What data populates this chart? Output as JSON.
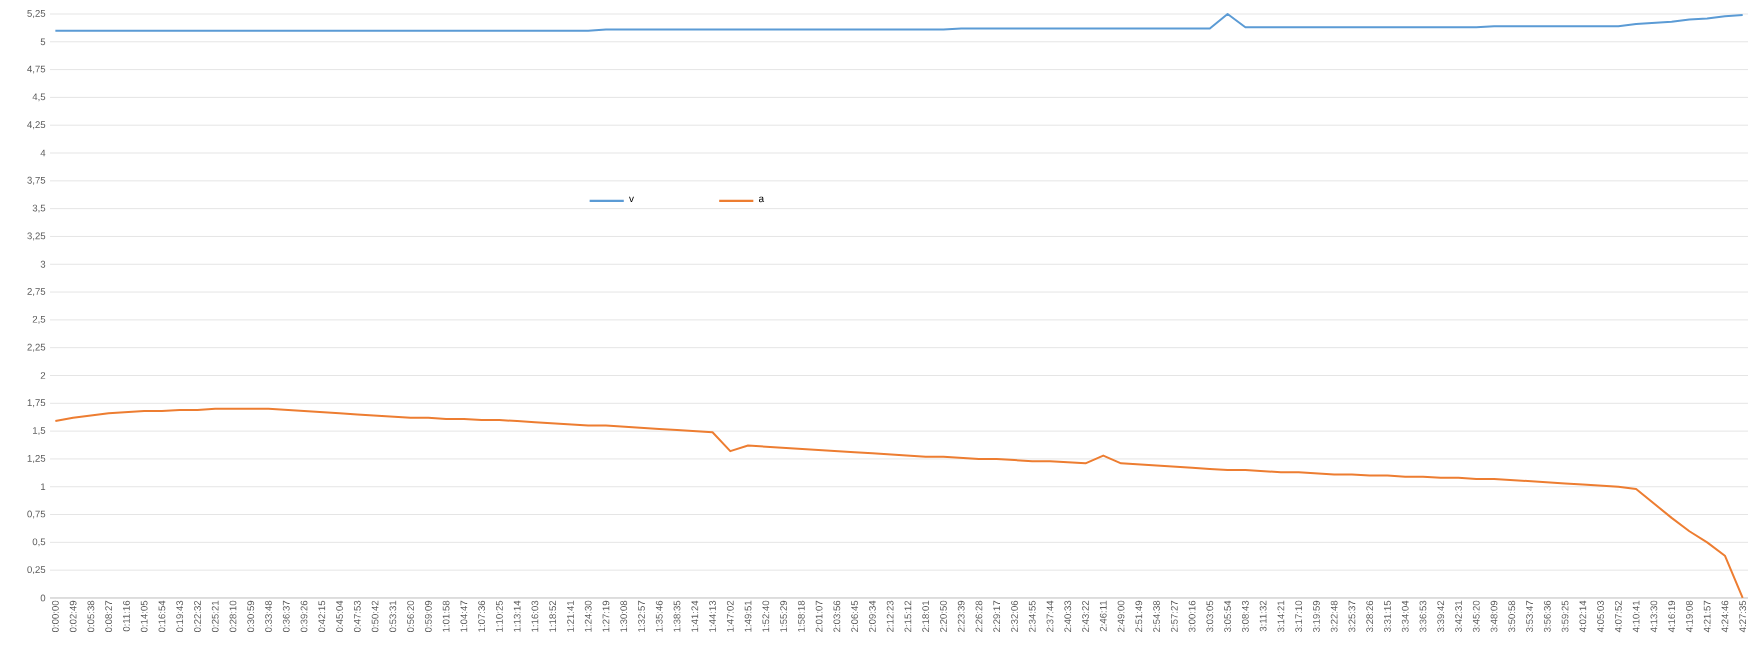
{
  "chart_data": {
    "type": "line",
    "categories": [
      "0:00:00",
      "0:02:49",
      "0:05:38",
      "0:08:27",
      "0:11:16",
      "0:14:05",
      "0:16:54",
      "0:19:43",
      "0:22:32",
      "0:25:21",
      "0:28:10",
      "0:30:59",
      "0:33:48",
      "0:36:37",
      "0:39:26",
      "0:42:15",
      "0:45:04",
      "0:47:53",
      "0:50:42",
      "0:53:31",
      "0:56:20",
      "0:59:09",
      "1:01:58",
      "1:04:47",
      "1:07:36",
      "1:10:25",
      "1:13:14",
      "1:16:03",
      "1:18:52",
      "1:21:41",
      "1:24:30",
      "1:27:19",
      "1:30:08",
      "1:32:57",
      "1:35:46",
      "1:38:35",
      "1:41:24",
      "1:44:13",
      "1:47:02",
      "1:49:51",
      "1:52:40",
      "1:55:29",
      "1:58:18",
      "2:01:07",
      "2:03:56",
      "2:06:45",
      "2:09:34",
      "2:12:23",
      "2:15:12",
      "2:18:01",
      "2:20:50",
      "2:23:39",
      "2:26:28",
      "2:29:17",
      "2:32:06",
      "2:34:55",
      "2:37:44",
      "2:40:33",
      "2:43:22",
      "2:46:11",
      "2:49:00",
      "2:51:49",
      "2:54:38",
      "2:57:27",
      "3:00:16",
      "3:03:05",
      "3:05:54",
      "3:08:43",
      "3:11:32",
      "3:14:21",
      "3:17:10",
      "3:19:59",
      "3:22:48",
      "3:25:37",
      "3:28:26",
      "3:31:15",
      "3:34:04",
      "3:36:53",
      "3:39:42",
      "3:42:31",
      "3:45:20",
      "3:48:09",
      "3:50:58",
      "3:53:47",
      "3:56:36",
      "3:59:25",
      "4:02:14",
      "4:05:03",
      "4:07:52",
      "4:10:41",
      "4:13:30",
      "4:16:19",
      "4:19:08",
      "4:21:57",
      "4:24:46",
      "4:27:35"
    ],
    "series": [
      {
        "name": "v",
        "color": "#5b9bd5",
        "values": [
          5.1,
          5.1,
          5.1,
          5.1,
          5.1,
          5.1,
          5.1,
          5.1,
          5.1,
          5.1,
          5.1,
          5.1,
          5.1,
          5.1,
          5.1,
          5.1,
          5.1,
          5.1,
          5.1,
          5.1,
          5.1,
          5.1,
          5.1,
          5.1,
          5.1,
          5.1,
          5.1,
          5.1,
          5.1,
          5.1,
          5.1,
          5.11,
          5.11,
          5.11,
          5.11,
          5.11,
          5.11,
          5.11,
          5.11,
          5.11,
          5.11,
          5.11,
          5.11,
          5.11,
          5.11,
          5.11,
          5.11,
          5.11,
          5.11,
          5.11,
          5.11,
          5.12,
          5.12,
          5.12,
          5.12,
          5.12,
          5.12,
          5.12,
          5.12,
          5.12,
          5.12,
          5.12,
          5.12,
          5.12,
          5.12,
          5.12,
          5.25,
          5.13,
          5.13,
          5.13,
          5.13,
          5.13,
          5.13,
          5.13,
          5.13,
          5.13,
          5.13,
          5.13,
          5.13,
          5.13,
          5.13,
          5.14,
          5.14,
          5.14,
          5.14,
          5.14,
          5.14,
          5.14,
          5.14,
          5.16,
          5.17,
          5.18,
          5.2,
          5.21,
          5.23,
          5.24
        ]
      },
      {
        "name": "a",
        "color": "#ed7d31",
        "values": [
          1.59,
          1.62,
          1.64,
          1.66,
          1.67,
          1.68,
          1.68,
          1.69,
          1.69,
          1.7,
          1.7,
          1.7,
          1.7,
          1.69,
          1.68,
          1.67,
          1.66,
          1.65,
          1.64,
          1.63,
          1.62,
          1.62,
          1.61,
          1.61,
          1.6,
          1.6,
          1.59,
          1.58,
          1.57,
          1.56,
          1.55,
          1.55,
          1.54,
          1.53,
          1.52,
          1.51,
          1.5,
          1.49,
          1.32,
          1.37,
          1.36,
          1.35,
          1.34,
          1.33,
          1.32,
          1.31,
          1.3,
          1.29,
          1.28,
          1.27,
          1.27,
          1.26,
          1.25,
          1.25,
          1.24,
          1.23,
          1.23,
          1.22,
          1.21,
          1.28,
          1.21,
          1.2,
          1.19,
          1.18,
          1.17,
          1.16,
          1.15,
          1.15,
          1.14,
          1.13,
          1.13,
          1.12,
          1.11,
          1.11,
          1.1,
          1.1,
          1.09,
          1.09,
          1.08,
          1.08,
          1.07,
          1.07,
          1.06,
          1.05,
          1.04,
          1.03,
          1.02,
          1.01,
          1.0,
          0.98,
          0.85,
          0.72,
          0.6,
          0.5,
          0.38,
          0.0
        ]
      }
    ],
    "ylim": [
      0,
      5.25
    ],
    "yticks": [
      0,
      {
        "value": 0.25,
        "label": "0,25"
      },
      {
        "value": 0.5,
        "label": "0,5"
      },
      {
        "value": 0.75,
        "label": "0,75"
      },
      1,
      {
        "value": 1.25,
        "label": "1,25"
      },
      {
        "value": 1.5,
        "label": "1,5"
      },
      {
        "value": 1.75,
        "label": "1,75"
      },
      2,
      {
        "value": 2.25,
        "label": "2,25"
      },
      {
        "value": 2.5,
        "label": "2,5"
      },
      {
        "value": 2.75,
        "label": "2,75"
      },
      3,
      {
        "value": 3.25,
        "label": "3,25"
      },
      {
        "value": 3.5,
        "label": "3,5"
      },
      {
        "value": 3.75,
        "label": "3,75"
      },
      4,
      {
        "value": 4.25,
        "label": "4,25"
      },
      {
        "value": 4.5,
        "label": "4,5"
      },
      {
        "value": 4.75,
        "label": "4,75"
      },
      5,
      {
        "value": 5.25,
        "label": "5,25"
      }
    ],
    "grid": "y",
    "legend": "center",
    "marker": "none",
    "line_style": "solid"
  }
}
